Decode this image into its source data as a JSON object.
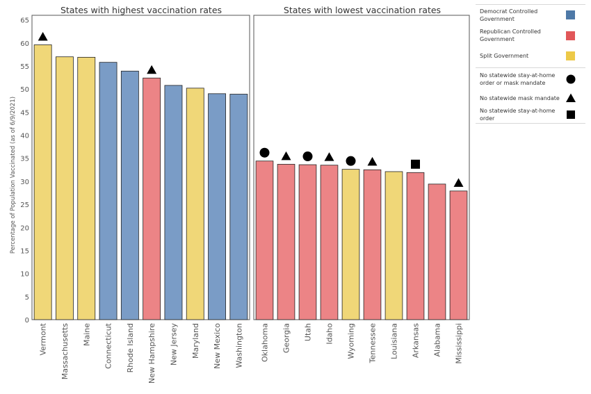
{
  "chart_data": {
    "type": "bar",
    "ylabel": "Percentage of Population Vaccinated  (as of 6/9/2021)",
    "ylim": [
      0,
      66
    ],
    "yticks": [
      0,
      5,
      10,
      15,
      20,
      25,
      30,
      35,
      40,
      45,
      50,
      55,
      60,
      65
    ],
    "grid": false,
    "legend_position": "right",
    "colors": {
      "Democrat": "#7a9cc6",
      "Republican": "#ec8486",
      "Split": "#f0d778"
    },
    "panels": [
      {
        "title": "States with highest vaccination rates",
        "categories": [
          "Vermont",
          "Massachusetts",
          "Maine",
          "Connecticut",
          "Rhode Island",
          "New Hampshire",
          "New Jersey",
          "Maryland",
          "New Mexico",
          "Washington"
        ],
        "values": [
          59.6,
          57.0,
          56.9,
          55.8,
          53.9,
          52.4,
          50.8,
          50.2,
          49.0,
          48.9
        ],
        "government": [
          "Split",
          "Split",
          "Split",
          "Democrat",
          "Democrat",
          "Republican",
          "Democrat",
          "Split",
          "Democrat",
          "Democrat"
        ],
        "markers": [
          "triangle",
          "",
          "",
          "",
          "",
          "triangle",
          "",
          "",
          "",
          ""
        ]
      },
      {
        "title": "States with lowest vaccination rates",
        "categories": [
          "Oklahoma",
          "Georgia",
          "Utah",
          "Idaho",
          "Wyoming",
          "Tennessee",
          "Louisiana",
          "Arkansas",
          "Alabama",
          "Mississippi"
        ],
        "values": [
          34.4,
          33.7,
          33.6,
          33.5,
          32.6,
          32.5,
          32.1,
          31.9,
          29.4,
          27.9
        ],
        "government": [
          "Republican",
          "Republican",
          "Republican",
          "Republican",
          "Split",
          "Republican",
          "Split",
          "Republican",
          "Republican",
          "Republican"
        ],
        "markers": [
          "circle",
          "triangle",
          "circle",
          "triangle",
          "circle",
          "triangle",
          "",
          "square",
          "",
          "triangle"
        ]
      }
    ]
  },
  "legend": {
    "colors": [
      {
        "label": "Democrat Controlled Government",
        "color": "#4e79a7"
      },
      {
        "label": "Republican Controlled Government",
        "color": "#e15759"
      },
      {
        "label": "Split Government",
        "color": "#edc948"
      }
    ],
    "shapes": [
      {
        "label": "No statewide stay-at-home order or mask mandate",
        "shape": "circle"
      },
      {
        "label": "No statewide mask mandate",
        "shape": "triangle"
      },
      {
        "label": "No statewide stay-at-home order",
        "shape": "square"
      }
    ]
  }
}
